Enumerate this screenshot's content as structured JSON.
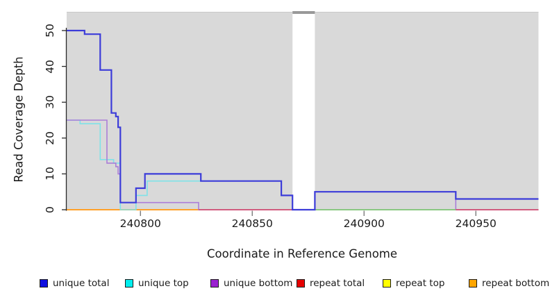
{
  "chart_data": {
    "type": "line",
    "subtype": "step-coverage-plot",
    "title": "",
    "xlabel": "Coordinate in Reference Genome",
    "ylabel": "Read Coverage Depth",
    "x_ticks": [
      240800,
      240850,
      240900,
      240950
    ],
    "y_ticks": [
      0,
      10,
      20,
      30,
      40,
      50
    ],
    "xlim": [
      240767,
      240978
    ],
    "ylim": [
      0,
      55
    ],
    "grid": false,
    "plot_bg_color": "#d9d9d9",
    "masked_region": {
      "x1": 240868,
      "x2": 240878,
      "fill": "#ffffff",
      "cap_color": "#999999"
    },
    "legend_position": "bottom",
    "series": [
      {
        "name": "unique total",
        "line_color": "#3c3cd9",
        "line_width": 2.2,
        "points": [
          [
            240767,
            50
          ],
          [
            240775,
            50
          ],
          [
            240775,
            49
          ],
          [
            240782,
            49
          ],
          [
            240782,
            39
          ],
          [
            240787,
            39
          ],
          [
            240787,
            27
          ],
          [
            240789,
            27
          ],
          [
            240789,
            26
          ],
          [
            240790,
            26
          ],
          [
            240790,
            23
          ],
          [
            240791,
            23
          ],
          [
            240791,
            2
          ],
          [
            240798,
            2
          ],
          [
            240798,
            6
          ],
          [
            240802,
            6
          ],
          [
            240802,
            10
          ],
          [
            240827,
            10
          ],
          [
            240827,
            8
          ],
          [
            240863,
            8
          ],
          [
            240863,
            4
          ],
          [
            240868,
            4
          ],
          [
            240868,
            0
          ],
          [
            240878,
            0
          ],
          [
            240878,
            5
          ],
          [
            240941,
            5
          ],
          [
            240941,
            3
          ],
          [
            240978,
            3
          ]
        ]
      },
      {
        "name": "unique top",
        "line_color": "#7fe2e8",
        "line_width": 1.6,
        "points": [
          [
            240767,
            25
          ],
          [
            240773,
            25
          ],
          [
            240773,
            24
          ],
          [
            240782,
            24
          ],
          [
            240782,
            14
          ],
          [
            240788,
            14
          ],
          [
            240788,
            13
          ],
          [
            240791,
            13
          ],
          [
            240791,
            0
          ],
          [
            240798,
            0
          ],
          [
            240798,
            4
          ],
          [
            240803,
            4
          ],
          [
            240803,
            8
          ],
          [
            240863,
            8
          ],
          [
            240863,
            4
          ],
          [
            240868,
            4
          ],
          [
            240868,
            0
          ],
          [
            240941,
            0
          ],
          [
            240941,
            3
          ],
          [
            240978,
            3
          ]
        ]
      },
      {
        "name": "unique bottom",
        "line_color": "#ab7dd8",
        "line_width": 1.6,
        "points": [
          [
            240767,
            25
          ],
          [
            240785,
            25
          ],
          [
            240785,
            13
          ],
          [
            240789,
            13
          ],
          [
            240789,
            12
          ],
          [
            240790,
            12
          ],
          [
            240790,
            10
          ],
          [
            240791,
            10
          ],
          [
            240791,
            2
          ],
          [
            240826,
            2
          ],
          [
            240826,
            0
          ],
          [
            240878,
            0
          ],
          [
            240878,
            5
          ],
          [
            240941,
            5
          ],
          [
            240941,
            0
          ],
          [
            240978,
            0
          ]
        ]
      },
      {
        "name": "repeat total",
        "line_color": "#d0557f",
        "line_width": 1.6,
        "points": [
          [
            240767,
            0
          ],
          [
            240978,
            0
          ]
        ]
      },
      {
        "name": "repeat top",
        "line_color": "#ffff00",
        "line_width": 1.6,
        "points": [
          [
            240767,
            0
          ],
          [
            240978,
            0
          ]
        ]
      },
      {
        "name": "repeat bottom",
        "line_color": "#ffa028",
        "line_width": 2,
        "points": [
          [
            240767,
            0
          ],
          [
            240978,
            0
          ]
        ]
      }
    ],
    "baseline_overlap_segments": [
      {
        "x1": 240826,
        "x2": 240868,
        "y": 0,
        "color": "#d0557f",
        "note": "repeat total visible"
      },
      {
        "x1": 240878,
        "x2": 240941,
        "y": 0,
        "color": "#82c882",
        "note": "unique/repeat top overlap blend"
      },
      {
        "x1": 240941,
        "x2": 240978,
        "y": 0,
        "color": "#d0557f",
        "note": "repeat total visible"
      }
    ]
  },
  "legend": {
    "items": [
      {
        "label": "unique total",
        "swatch_color": "#0f0fe0"
      },
      {
        "label": "unique top",
        "swatch_color": "#00eeee"
      },
      {
        "label": "unique bottom",
        "swatch_color": "#9a20d0"
      },
      {
        "label": "repeat total",
        "swatch_color": "#e60000"
      },
      {
        "label": "repeat top",
        "swatch_color": "#ffff00"
      },
      {
        "label": "repeat bottom",
        "swatch_color": "#ffa500"
      }
    ]
  }
}
